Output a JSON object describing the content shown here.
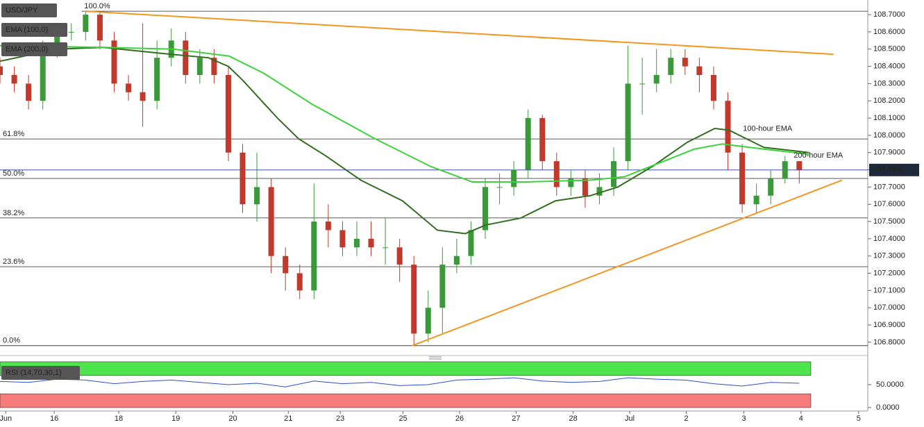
{
  "chart_data": [
    {
      "type": "candlestick",
      "legend": [
        "USD/JPY",
        "EMA (100,0)",
        "EMA (200,0)"
      ],
      "x": [
        0,
        0.25,
        0.5,
        0.75,
        1,
        1.25,
        1.5,
        1.75,
        2,
        2.25,
        2.5,
        2.75,
        3,
        3.25,
        3.5,
        3.75,
        4,
        4.25,
        4.5,
        4.75,
        5,
        5.25,
        5.5,
        5.75,
        6,
        6.25,
        6.5,
        6.75,
        7,
        7.25,
        7.5,
        7.75,
        8,
        8.25,
        8.5,
        8.75,
        9,
        9.25,
        9.5,
        9.75,
        10,
        10.25,
        10.5,
        10.75,
        11,
        11.25,
        11.5,
        11.75,
        12,
        12.25,
        12.5,
        12.75,
        13,
        13.25,
        13.5,
        13.75,
        14
      ],
      "open": [
        108.4,
        108.35,
        108.3,
        108.2,
        108.5,
        108.6,
        108.6,
        108.7,
        108.55,
        108.3,
        108.25,
        108.2,
        108.45,
        108.55,
        108.35,
        108.45,
        108.35,
        107.9,
        107.6,
        107.7,
        107.3,
        107.2,
        107.1,
        107.5,
        107.45,
        107.35,
        107.4,
        107.35,
        107.35,
        107.25,
        106.85,
        107.0,
        107.25,
        107.3,
        107.45,
        107.7,
        107.7,
        107.8,
        108.1,
        107.85,
        107.7,
        107.75,
        107.65,
        107.7,
        107.85,
        108.3,
        108.3,
        108.35,
        108.45,
        108.4,
        108.35,
        108.2,
        107.9,
        107.6,
        107.65,
        107.75,
        107.85
      ],
      "high": [
        108.45,
        108.4,
        108.35,
        108.55,
        108.65,
        108.65,
        108.72,
        108.72,
        108.6,
        108.35,
        108.65,
        108.55,
        108.62,
        108.6,
        108.5,
        108.5,
        108.4,
        107.95,
        107.9,
        107.75,
        107.35,
        107.25,
        107.72,
        107.6,
        107.5,
        107.5,
        107.5,
        107.52,
        107.4,
        107.3,
        107.1,
        107.35,
        107.4,
        107.5,
        107.75,
        107.78,
        107.85,
        108.15,
        108.12,
        107.9,
        107.8,
        107.8,
        107.78,
        107.93,
        108.52,
        108.45,
        108.5,
        108.5,
        108.5,
        108.45,
        108.4,
        108.25,
        107.95,
        107.72,
        107.8,
        107.88,
        107.85
      ],
      "low": [
        108.3,
        108.25,
        108.15,
        108.15,
        108.45,
        108.55,
        108.55,
        108.5,
        108.25,
        108.2,
        108.05,
        108.15,
        108.4,
        108.3,
        108.3,
        108.3,
        107.85,
        107.55,
        107.5,
        107.2,
        107.1,
        107.05,
        107.05,
        107.35,
        107.3,
        107.3,
        107.3,
        107.25,
        107.15,
        106.78,
        106.8,
        106.85,
        107.2,
        107.25,
        107.4,
        107.6,
        107.65,
        107.75,
        107.8,
        107.65,
        107.65,
        107.58,
        107.6,
        107.65,
        107.8,
        108.12,
        108.25,
        108.3,
        108.35,
        108.25,
        108.15,
        107.8,
        107.55,
        107.55,
        107.6,
        107.72,
        107.72
      ],
      "close": [
        108.35,
        108.3,
        108.2,
        108.5,
        108.6,
        108.6,
        108.7,
        108.55,
        108.3,
        108.25,
        108.2,
        108.45,
        108.55,
        108.35,
        108.45,
        108.35,
        107.9,
        107.6,
        107.7,
        107.3,
        107.2,
        107.1,
        107.5,
        107.45,
        107.35,
        107.4,
        107.35,
        107.35,
        107.25,
        106.85,
        107.0,
        107.25,
        107.3,
        107.45,
        107.7,
        107.7,
        107.8,
        108.1,
        107.85,
        107.7,
        107.75,
        107.65,
        107.7,
        107.85,
        108.3,
        108.3,
        108.35,
        108.45,
        108.4,
        108.35,
        108.2,
        107.9,
        107.6,
        107.65,
        107.75,
        107.85,
        107.8
      ],
      "up_color": "#3a9a3a",
      "down_color": "#c0392b",
      "series": [
        {
          "name": "100-hour EMA",
          "color": "#2f6e1e",
          "x": [
            0,
            1,
            1.8,
            3,
            3.65,
            4.0,
            4.25,
            4.86,
            5.23,
            5.71,
            6.32,
            7.05,
            7.66,
            8.15,
            8.51,
            9.12,
            9.73,
            10.34,
            10.82,
            11.43,
            12.04,
            12.52,
            12.77,
            13.38,
            14.17
          ],
          "values": [
            108.43,
            108.5,
            108.51,
            108.47,
            108.45,
            108.4,
            108.32,
            108.1,
            107.98,
            107.88,
            107.74,
            107.62,
            107.45,
            107.43,
            107.48,
            107.52,
            107.62,
            107.65,
            107.7,
            107.82,
            107.96,
            108.04,
            108.03,
            107.93,
            107.9
          ]
        },
        {
          "name": "200-hour EMA",
          "color": "#3ad43a",
          "x": [
            0,
            1.82,
            3.04,
            4.01,
            4.62,
            5.47,
            6.57,
            7.54,
            8.27,
            9.24,
            10.34,
            10.94,
            11.55,
            12.16,
            12.65,
            13.38,
            14.17
          ],
          "values": [
            108.52,
            108.51,
            108.5,
            108.46,
            108.36,
            108.18,
            107.98,
            107.82,
            107.73,
            107.73,
            107.74,
            107.76,
            107.84,
            107.92,
            107.95,
            107.92,
            107.89
          ]
        }
      ],
      "trendlines": [
        {
          "color": "#f5961e",
          "x": [
            1.5,
            14.6
          ],
          "values": [
            108.72,
            108.47
          ]
        },
        {
          "color": "#f5961e",
          "x": [
            7.22,
            14.75
          ],
          "values": [
            106.78,
            107.74
          ]
        }
      ],
      "fib_levels": [
        {
          "label": "100.0%",
          "value": 108.72
        },
        {
          "label": "61.8%",
          "value": 107.979
        },
        {
          "label": "50.0%",
          "value": 107.75
        },
        {
          "label": "38.2%",
          "value": 107.521
        },
        {
          "label": "23.6%",
          "value": 107.238
        },
        {
          "label": "0.0%",
          "value": 106.78
        }
      ],
      "last_price": {
        "value": 107.799,
        "label": "107.7990",
        "color": "#2233aa"
      },
      "xlim": [
        0,
        15.2
      ],
      "xticks": [
        {
          "value": 0.1,
          "label": "Jun"
        },
        {
          "value": 0.95,
          "label": "16"
        },
        {
          "value": 2.08,
          "label": "18"
        },
        {
          "value": 3.08,
          "label": "19"
        },
        {
          "value": 4.08,
          "label": "20"
        },
        {
          "value": 5.05,
          "label": "21"
        },
        {
          "value": 5.96,
          "label": "23"
        },
        {
          "value": 7.06,
          "label": "25"
        },
        {
          "value": 8.05,
          "label": "26"
        },
        {
          "value": 9.04,
          "label": "27"
        },
        {
          "value": 10.04,
          "label": "28"
        },
        {
          "value": 11.03,
          "label": "Jul"
        },
        {
          "value": 12.02,
          "label": "2"
        },
        {
          "value": 13.03,
          "label": "3"
        },
        {
          "value": 14.03,
          "label": "4"
        },
        {
          "value": 15.04,
          "label": "5"
        }
      ],
      "ylim": [
        106.731,
        108.785
      ],
      "yticks": [
        {
          "value": 106.8,
          "label": "106.8000"
        },
        {
          "value": 106.9,
          "label": "106.9000"
        },
        {
          "value": 107.0,
          "label": "107.0000"
        },
        {
          "value": 107.1,
          "label": "107.1000"
        },
        {
          "value": 107.2,
          "label": "107.2000"
        },
        {
          "value": 107.3,
          "label": "107.3000"
        },
        {
          "value": 107.4,
          "label": "107.4000"
        },
        {
          "value": 107.5,
          "label": "107.5000"
        },
        {
          "value": 107.6,
          "label": "107.6000"
        },
        {
          "value": 107.7,
          "label": "107.7000"
        },
        {
          "value": 107.8,
          "label": "107.8000"
        },
        {
          "value": 107.9,
          "label": "107.9000"
        },
        {
          "value": 108.0,
          "label": "108.0000"
        },
        {
          "value": 108.1,
          "label": "108.1000"
        },
        {
          "value": 108.2,
          "label": "108.2000"
        },
        {
          "value": 108.3,
          "label": "108.3000"
        },
        {
          "value": 108.4,
          "label": "108.4000"
        },
        {
          "value": 108.5,
          "label": "108.5000"
        },
        {
          "value": 108.6,
          "label": "108.6000"
        },
        {
          "value": 108.7,
          "label": "108.7000"
        }
      ]
    },
    {
      "type": "line",
      "title": "RSI (14,70,30,1)",
      "color": "#2b4fd6",
      "x": [
        0,
        0.5,
        1,
        1.5,
        2,
        2.5,
        3,
        3.5,
        4,
        4.5,
        5,
        5.5,
        6,
        6.5,
        7,
        7.5,
        8,
        8.5,
        9,
        9.5,
        10,
        10.5,
        11,
        11.5,
        12,
        12.5,
        13,
        13.5,
        14
      ],
      "values": [
        57,
        55,
        62,
        60,
        52,
        57,
        60,
        55,
        50,
        53,
        45,
        58,
        52,
        55,
        48,
        50,
        60,
        62,
        65,
        58,
        55,
        57,
        65,
        62,
        60,
        52,
        47,
        55,
        53
      ],
      "bands": [
        {
          "range": [
            70,
            100
          ],
          "color": "#4ee44e"
        },
        {
          "range": [
            0,
            30
          ],
          "color": "#f77b7b"
        }
      ],
      "ylim": [
        0,
        100
      ],
      "yticks": [
        {
          "value": 50,
          "label": "50.0000"
        },
        {
          "value": 0,
          "label": "0.0000"
        }
      ]
    }
  ]
}
